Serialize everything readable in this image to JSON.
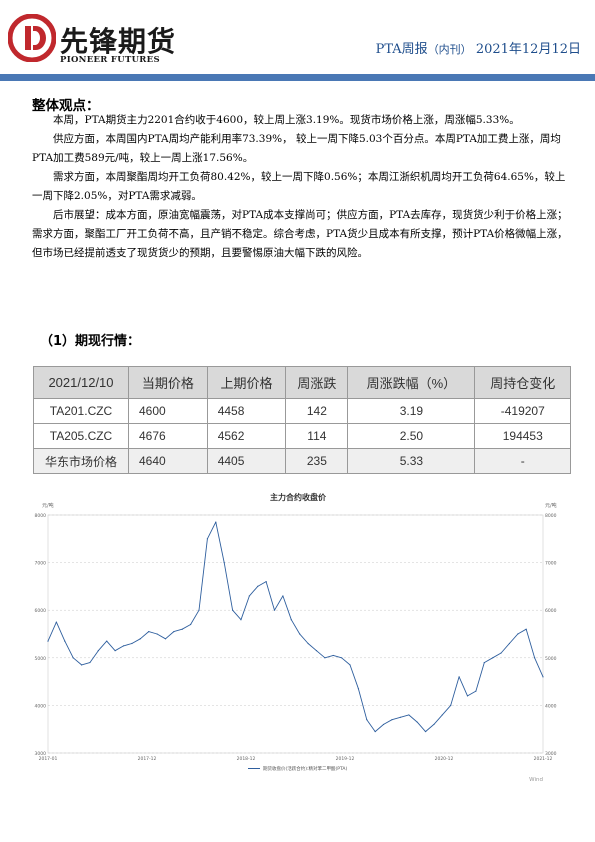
{
  "header": {
    "logo_cn": "先锋期货",
    "logo_en": "PIONEER FUTURES",
    "title_main": "PTA周报",
    "title_sub": "（内刊）",
    "date": "2021年12月12日",
    "brand_color": "#c0282d",
    "rule_color": "#4a78b5"
  },
  "overview": {
    "heading": "整体观点：",
    "p1": "本周，PTA期货主力2201合约收于4600，较上周上涨3.19%。现货市场价格上涨，周涨幅5.33%。",
    "p2": "供应方面，本周国内PTA周均产能利用率73.39%， 较上一周下降5.03个百分点。本周PTA加工费上涨，周均PTA加工费589元/吨，较上一周上涨17.56%。",
    "p3": "需求方面，本周聚酯周均开工负荷80.42%，较上一周下降0.56%；本周江浙织机周均开工负荷64.65%，较上一周下降2.05%，对PTA需求减弱。",
    "p4": "后市展望：成本方面，原油宽幅震荡，对PTA成本支撑尚可；供应方面，PTA去库存，现货货少利于价格上涨；需求方面，聚酯工厂开工负荷不高，且产销不稳定。综合考虑，PTA货少且成本有所支撑，预计PTA价格微幅上涨，但市场已经提前透支了现货货少的预期，且要警惕原油大幅下跌的风险。"
  },
  "quotes": {
    "heading": "（1）期现行情：",
    "columns": [
      "2021/12/10",
      "当期价格",
      "上期价格",
      "周涨跌",
      "周涨跌幅（%）",
      "周持仓变化"
    ],
    "rows": [
      [
        "TA201.CZC",
        "4600",
        "4458",
        "142",
        "3.19",
        "-419207"
      ],
      [
        "TA205.CZC",
        "4676",
        "4562",
        "114",
        "2.50",
        "194453"
      ],
      [
        "华东市场价格",
        "4640",
        "4405",
        "235",
        "5.33",
        "-"
      ]
    ]
  },
  "chart_data": {
    "type": "line",
    "title": "主力合约收盘价",
    "ylabel_left": "元/吨",
    "ylabel_right": "元/吨",
    "ylim": [
      3000,
      8000
    ],
    "yticks": [
      "3000",
      "4000",
      "5000",
      "6000",
      "7000",
      "8000"
    ],
    "xticks": [
      "2017-01",
      "2017-12",
      "2018-12",
      "2019-12",
      "2020-12",
      "2021-12"
    ],
    "legend": "期货收盘价(活跃合约):精对苯二甲酸(PTA)",
    "source": "Wind",
    "line_color": "#2f5f9e",
    "series": [
      {
        "name": "期货收盘价(活跃合约):精对苯二甲酸(PTA)",
        "x": [
          "2017-01",
          "2017-02",
          "2017-03",
          "2017-04",
          "2017-05",
          "2017-06",
          "2017-07",
          "2017-08",
          "2017-09",
          "2017-10",
          "2017-11",
          "2017-12",
          "2018-01",
          "2018-02",
          "2018-03",
          "2018-04",
          "2018-05",
          "2018-06",
          "2018-07",
          "2018-08",
          "2018-09",
          "2018-10",
          "2018-11",
          "2018-12",
          "2019-01",
          "2019-02",
          "2019-03",
          "2019-04",
          "2019-05",
          "2019-06",
          "2019-07",
          "2019-08",
          "2019-09",
          "2019-10",
          "2019-11",
          "2019-12",
          "2020-01",
          "2020-02",
          "2020-03",
          "2020-04",
          "2020-05",
          "2020-06",
          "2020-07",
          "2020-08",
          "2020-09",
          "2020-10",
          "2020-11",
          "2020-12",
          "2021-01",
          "2021-02",
          "2021-03",
          "2021-04",
          "2021-05",
          "2021-06",
          "2021-07",
          "2021-08",
          "2021-09",
          "2021-10",
          "2021-11",
          "2021-12"
        ],
        "values": [
          5350,
          5750,
          5350,
          5000,
          4850,
          4900,
          5150,
          5350,
          5150,
          5250,
          5300,
          5400,
          5550,
          5500,
          5400,
          5550,
          5600,
          5700,
          6000,
          7500,
          7850,
          7000,
          6000,
          5800,
          6300,
          6500,
          6600,
          6000,
          6300,
          5800,
          5500,
          5300,
          5150,
          5000,
          5050,
          5000,
          4850,
          4350,
          3700,
          3450,
          3600,
          3700,
          3750,
          3800,
          3650,
          3450,
          3600,
          3800,
          4000,
          4600,
          4200,
          4300,
          4900,
          5000,
          5100,
          5300,
          5500,
          5600,
          5000,
          4600
        ]
      }
    ]
  }
}
